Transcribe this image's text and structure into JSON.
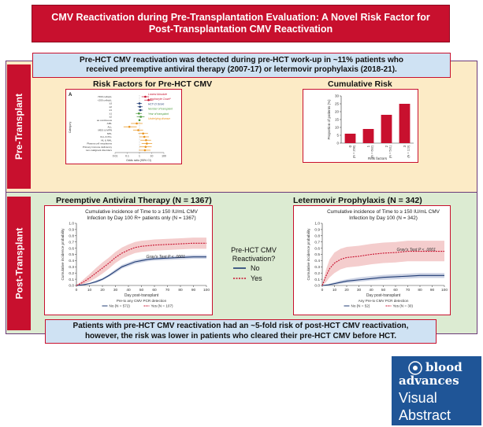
{
  "title": {
    "line1": "CMV Reactivation during Pre-Transplantation Evaluation: A Novel Risk Factor for",
    "line2": "Post-Transplantation CMV Reactivation"
  },
  "sections": {
    "pre": "Pre-Transplant",
    "post": "Post-Transplant"
  },
  "top_message": {
    "line1": "Pre-HCT CMV reactivation was detected during pre-HCT work-up in ~11% patients who",
    "line2": "received preemptive antiviral therapy (2007-17) or letermovir prophylaxis (2018-21)."
  },
  "bottom_message": {
    "line1": "Patients with pre-HCT CMV reactivation had an ~5-fold risk of post-HCT CMV reactivation,",
    "line2": "however, the risk was lower in patients who cleared their pre-HCT CMV before HCT."
  },
  "headings": {
    "risk_factors": "Risk Factors for Pre-HCT CMV",
    "cumulative_risk": "Cumulative Risk",
    "preemptive": "Preemptive Antiviral Therapy (N = 1367)",
    "letermovir": "Letermovir Prophylaxis (N = 342)"
  },
  "legend": {
    "title_line1": "Pre-HCT CMV",
    "title_line2": "Reactivation?",
    "no": "No",
    "yes": "Yes",
    "no_color": "#1f3b73",
    "yes_color": "#c8102e"
  },
  "forest": {
    "panel_letter": "A",
    "ylabel": "Category",
    "xlabel": "Odds ratio (95% CI)",
    "ticks": [
      "0.01",
      "0.1",
      "1",
      "10",
      "100"
    ],
    "rows": [
      {
        "label": "<500 cells/μL",
        "or": 3.0,
        "lo": 1.5,
        "hi": 6.0,
        "color": "#c8102e"
      },
      {
        "label": "<200 cells/μL",
        "or": 5.5,
        "lo": 2.5,
        "hi": 12.0,
        "color": "#c8102e"
      },
      {
        "label": "≥3",
        "or": 1.0,
        "lo": 0.6,
        "hi": 1.6,
        "color": "#1f3b73"
      },
      {
        "label": "≥2",
        "or": 1.1,
        "lo": 0.7,
        "hi": 1.8,
        "color": "#1f3b73"
      },
      {
        "label": "≥1",
        "or": 1.2,
        "lo": 0.8,
        "hi": 1.9,
        "color": "#1f3b73"
      },
      {
        "label": "≥1",
        "or": 0.9,
        "lo": 0.5,
        "hi": 1.6,
        "color": "#4a9a3a"
      },
      {
        "label": "≥2",
        "or": 1.3,
        "lo": 0.6,
        "hi": 2.6,
        "color": "#4a9a3a"
      },
      {
        "label": "as continuous",
        "or": 1.0,
        "lo": 0.85,
        "hi": 1.2,
        "color": "#4a9a3a"
      },
      {
        "label": "AML",
        "or": 0.6,
        "lo": 0.2,
        "hi": 1.8,
        "color": "#e8921a"
      },
      {
        "label": "ALL",
        "or": 0.15,
        "lo": 0.05,
        "hi": 0.6,
        "color": "#e8921a"
      },
      {
        "label": "MDS & MPN",
        "or": 0.8,
        "lo": 0.3,
        "hi": 2.0,
        "color": "#e8921a"
      },
      {
        "label": "NHL",
        "or": 2.0,
        "lo": 0.8,
        "hi": 5.0,
        "color": "#e8921a"
      },
      {
        "label": "CLL & PLL",
        "or": 2.5,
        "lo": 1.0,
        "hi": 6.0,
        "color": "#e8921a"
      },
      {
        "label": "HL & NHL",
        "or": 3.5,
        "lo": 1.2,
        "hi": 9.0,
        "color": "#e8921a"
      },
      {
        "label": "Plasma cell neoplasms",
        "or": 4.0,
        "lo": 1.5,
        "hi": 11.0,
        "color": "#e8921a"
      },
      {
        "label": "Primary immune deficiency",
        "or": 3.2,
        "lo": 1.0,
        "hi": 10.0,
        "color": "#e8921a"
      },
      {
        "label": "non-malignant disorders",
        "or": 2.8,
        "lo": 0.9,
        "hi": 8.0,
        "color": "#e8921a"
      }
    ],
    "legend_items": [
      {
        "text": "Lowest Absolute",
        "color": "#c8102e"
      },
      {
        "text": "Lymphocyte Count*",
        "color": "#c8102e"
      },
      {
        "text": "HCT-CI Score",
        "color": "#1f3b73"
      },
      {
        "text": "Number of transplant",
        "color": "#4a9a3a"
      },
      {
        "text": "Year of transplant",
        "color": "#4a9a3a"
      },
      {
        "text": "Underlying disease",
        "color": "#e8921a"
      }
    ]
  },
  "chart_data": [
    {
      "type": "bar",
      "title": "Cumulative Risk",
      "ylabel": "Proportion of patients (%)",
      "xlabel": "Risk factors",
      "ylim": [
        0,
        30
      ],
      "yticks": [
        0,
        5,
        10,
        15,
        20,
        25,
        30
      ],
      "categories": [
        "0",
        "1",
        "2",
        "3"
      ],
      "counts": [
        "(N = 268)",
        "(N = 692)",
        "(N = 531)",
        "(N = 119)"
      ],
      "values": [
        6.0,
        9.0,
        18.0,
        25.0
      ],
      "color": "#c8102e"
    },
    {
      "type": "line",
      "title": "Cumulative incidence of Time to ≥ 150 IU/mL CMV",
      "subtitle": "Infection by Day 100 R+ patients only (N = 1367)",
      "ylabel": "Cumulative incidence probability",
      "xlabel": "Day post-transplant",
      "ylim": [
        0,
        1.0
      ],
      "yticks": [
        "0.0",
        "0.1",
        "0.2",
        "0.3",
        "0.4",
        "0.5",
        "0.6",
        "0.7",
        "0.8",
        "0.9",
        "1.0"
      ],
      "xticks": [
        0,
        10,
        20,
        30,
        40,
        50,
        60,
        70,
        80,
        90,
        100
      ],
      "annotation": "Gray's Test P < .0001",
      "footer_title": "Pre-tx any CMV PCR detection",
      "footer_no": "No (N = 572)",
      "footer_yes": "Yes (N = 107)",
      "series": [
        {
          "name": "No",
          "x": [
            0,
            5,
            10,
            15,
            20,
            25,
            30,
            35,
            40,
            45,
            50,
            55,
            60,
            70,
            80,
            90,
            100
          ],
          "y": [
            0,
            0.01,
            0.03,
            0.06,
            0.1,
            0.16,
            0.23,
            0.3,
            0.34,
            0.38,
            0.4,
            0.42,
            0.43,
            0.44,
            0.45,
            0.46,
            0.46
          ],
          "lo": [
            0,
            0.0,
            0.02,
            0.04,
            0.08,
            0.14,
            0.2,
            0.27,
            0.31,
            0.35,
            0.37,
            0.39,
            0.4,
            0.41,
            0.42,
            0.43,
            0.43
          ],
          "hi": [
            0,
            0.02,
            0.04,
            0.08,
            0.12,
            0.18,
            0.26,
            0.33,
            0.37,
            0.41,
            0.43,
            0.45,
            0.46,
            0.47,
            0.48,
            0.49,
            0.49
          ]
        },
        {
          "name": "Yes",
          "x": [
            0,
            5,
            10,
            15,
            20,
            25,
            30,
            35,
            40,
            45,
            50,
            55,
            60,
            70,
            80,
            90,
            100
          ],
          "y": [
            0,
            0.05,
            0.12,
            0.2,
            0.28,
            0.36,
            0.45,
            0.52,
            0.57,
            0.61,
            0.63,
            0.64,
            0.65,
            0.66,
            0.67,
            0.68,
            0.68
          ],
          "lo": [
            0,
            0.02,
            0.06,
            0.12,
            0.19,
            0.27,
            0.36,
            0.43,
            0.48,
            0.52,
            0.54,
            0.55,
            0.56,
            0.57,
            0.58,
            0.59,
            0.59
          ],
          "hi": [
            0,
            0.09,
            0.18,
            0.28,
            0.37,
            0.45,
            0.54,
            0.61,
            0.66,
            0.7,
            0.72,
            0.73,
            0.74,
            0.75,
            0.76,
            0.77,
            0.77
          ]
        }
      ]
    },
    {
      "type": "line",
      "title": "Cumulative incidence of Time to ≥ 150 IU/mL CMV",
      "subtitle": "Infection by Day 100 (N = 342)",
      "ylabel": "Cumulative incidence probability",
      "xlabel": "Day post-transplant",
      "ylim": [
        0,
        1.0
      ],
      "yticks": [
        "0.0",
        "0.1",
        "0.2",
        "0.3",
        "0.4",
        "0.5",
        "0.6",
        "0.7",
        "0.8",
        "0.9",
        "1.0"
      ],
      "xticks": [
        0,
        10,
        20,
        30,
        40,
        50,
        60,
        70,
        80,
        90,
        100
      ],
      "annotation": "Gray's Test P < .0001",
      "footer_title": "Any Pre-tx CMV PCR detection",
      "footer_no": "No (N = 52)",
      "footer_yes": "Yes (N = 30)",
      "series": [
        {
          "name": "No",
          "x": [
            0,
            5,
            10,
            15,
            20,
            30,
            40,
            50,
            60,
            70,
            80,
            90,
            100
          ],
          "y": [
            0,
            0.01,
            0.03,
            0.05,
            0.07,
            0.09,
            0.11,
            0.13,
            0.14,
            0.15,
            0.16,
            0.16,
            0.16
          ],
          "lo": [
            0,
            0.0,
            0.01,
            0.03,
            0.04,
            0.06,
            0.08,
            0.09,
            0.1,
            0.11,
            0.12,
            0.12,
            0.12
          ],
          "hi": [
            0,
            0.02,
            0.05,
            0.08,
            0.1,
            0.13,
            0.15,
            0.17,
            0.18,
            0.19,
            0.2,
            0.2,
            0.2
          ]
        },
        {
          "name": "Yes",
          "x": [
            0,
            3,
            6,
            10,
            15,
            20,
            30,
            40,
            50,
            60,
            70,
            80,
            90,
            100
          ],
          "y": [
            0,
            0.15,
            0.27,
            0.36,
            0.42,
            0.45,
            0.47,
            0.5,
            0.52,
            0.53,
            0.55,
            0.55,
            0.55,
            0.55
          ],
          "lo": [
            0,
            0.05,
            0.13,
            0.2,
            0.26,
            0.29,
            0.31,
            0.34,
            0.36,
            0.37,
            0.39,
            0.39,
            0.39,
            0.39
          ],
          "hi": [
            0,
            0.25,
            0.42,
            0.53,
            0.59,
            0.62,
            0.64,
            0.67,
            0.69,
            0.7,
            0.72,
            0.72,
            0.72,
            0.72
          ]
        }
      ]
    }
  ],
  "brand": {
    "blood": "blood",
    "advances": "advances",
    "visual": "Visual",
    "abstract": "Abstract",
    "color": "#1f5597"
  }
}
